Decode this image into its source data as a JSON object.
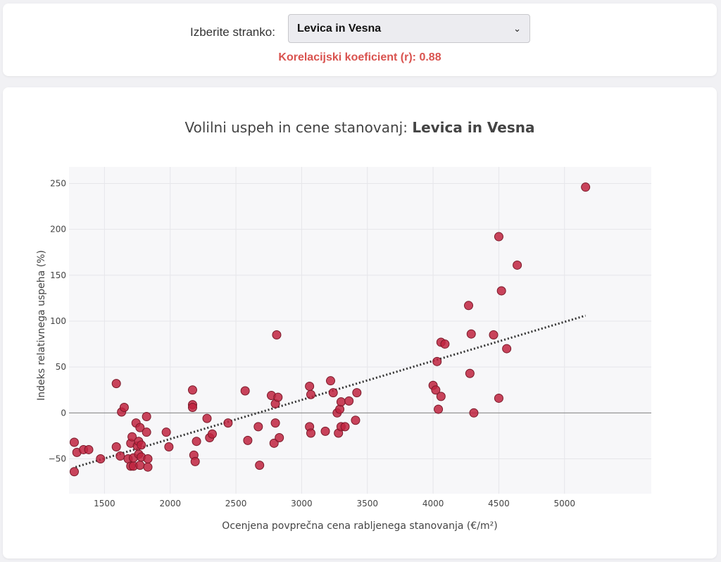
{
  "selector": {
    "label": "Izberite stranko:",
    "value": "Levica in Vesna"
  },
  "correlation": {
    "text": "Korelacijski koeficient (r): 0.88",
    "color": "#d9534f"
  },
  "chart_data": {
    "type": "scatter",
    "title_prefix": "Volilni uspeh in cene stanovanj: ",
    "title_bold": "Levica in Vesna",
    "xlabel": "Ocenjena povprečna cena rabljenega stanovanja (€/m²)",
    "ylabel": "Indeks relativnega uspeha (%)",
    "xlim": [
      1230,
      5660
    ],
    "ylim": [
      -88,
      268
    ],
    "xticks": [
      1500,
      2000,
      2500,
      3000,
      3500,
      4000,
      4500,
      5000
    ],
    "yticks": [
      -50,
      0,
      50,
      100,
      150,
      200,
      250
    ],
    "ytick_labels": [
      "−50",
      "0",
      "50",
      "100",
      "150",
      "200",
      "250"
    ],
    "grid": true,
    "zero_line": true,
    "colors": {
      "point": "#c0233f",
      "point_edge": "#7a1a2a",
      "trend": "#333333",
      "plot_bg": "#f7f7f9"
    },
    "trendline": {
      "x": [
        1280,
        5160
      ],
      "y": [
        -59,
        106
      ]
    },
    "points": [
      [
        1270,
        -32
      ],
      [
        1290,
        -43
      ],
      [
        1340,
        -40
      ],
      [
        1380,
        -40
      ],
      [
        1270,
        -64
      ],
      [
        1470,
        -50
      ],
      [
        1590,
        32
      ],
      [
        1590,
        -37
      ],
      [
        1630,
        1
      ],
      [
        1650,
        6
      ],
      [
        1620,
        -47
      ],
      [
        1680,
        -50
      ],
      [
        1700,
        -33
      ],
      [
        1710,
        -26
      ],
      [
        1700,
        -58
      ],
      [
        1720,
        -58
      ],
      [
        1720,
        -49
      ],
      [
        1740,
        -11
      ],
      [
        1750,
        -36
      ],
      [
        1760,
        -31
      ],
      [
        1760,
        -45
      ],
      [
        1770,
        -16
      ],
      [
        1770,
        -57
      ],
      [
        1780,
        -35
      ],
      [
        1780,
        -48
      ],
      [
        1820,
        -21
      ],
      [
        1820,
        -4
      ],
      [
        1830,
        -59
      ],
      [
        1830,
        -50
      ],
      [
        1970,
        -21
      ],
      [
        1990,
        -37
      ],
      [
        2170,
        25
      ],
      [
        2170,
        9
      ],
      [
        2170,
        6
      ],
      [
        2180,
        -46
      ],
      [
        2190,
        -53
      ],
      [
        2200,
        -31
      ],
      [
        2280,
        -6
      ],
      [
        2300,
        -27
      ],
      [
        2320,
        -23
      ],
      [
        2440,
        -11
      ],
      [
        2570,
        24
      ],
      [
        2590,
        -30
      ],
      [
        2670,
        -15
      ],
      [
        2680,
        -57
      ],
      [
        2770,
        19
      ],
      [
        2790,
        -33
      ],
      [
        2800,
        -11
      ],
      [
        2800,
        10
      ],
      [
        2810,
        85
      ],
      [
        2820,
        17
      ],
      [
        2830,
        -27
      ],
      [
        3060,
        29
      ],
      [
        3060,
        -15
      ],
      [
        3070,
        -22
      ],
      [
        3070,
        20
      ],
      [
        3180,
        -20
      ],
      [
        3220,
        35
      ],
      [
        3240,
        22
      ],
      [
        3270,
        0
      ],
      [
        3280,
        -22
      ],
      [
        3290,
        4
      ],
      [
        3300,
        12
      ],
      [
        3300,
        -15
      ],
      [
        3330,
        -15
      ],
      [
        3360,
        13
      ],
      [
        3410,
        -8
      ],
      [
        3420,
        22
      ],
      [
        4000,
        30
      ],
      [
        4020,
        25
      ],
      [
        4030,
        56
      ],
      [
        4040,
        4
      ],
      [
        4060,
        77
      ],
      [
        4060,
        18
      ],
      [
        4090,
        75
      ],
      [
        4270,
        117
      ],
      [
        4280,
        43
      ],
      [
        4290,
        86
      ],
      [
        4310,
        0
      ],
      [
        4460,
        85
      ],
      [
        4500,
        192
      ],
      [
        4500,
        16
      ],
      [
        4520,
        133
      ],
      [
        4560,
        70
      ],
      [
        4640,
        161
      ],
      [
        5160,
        246
      ]
    ]
  }
}
